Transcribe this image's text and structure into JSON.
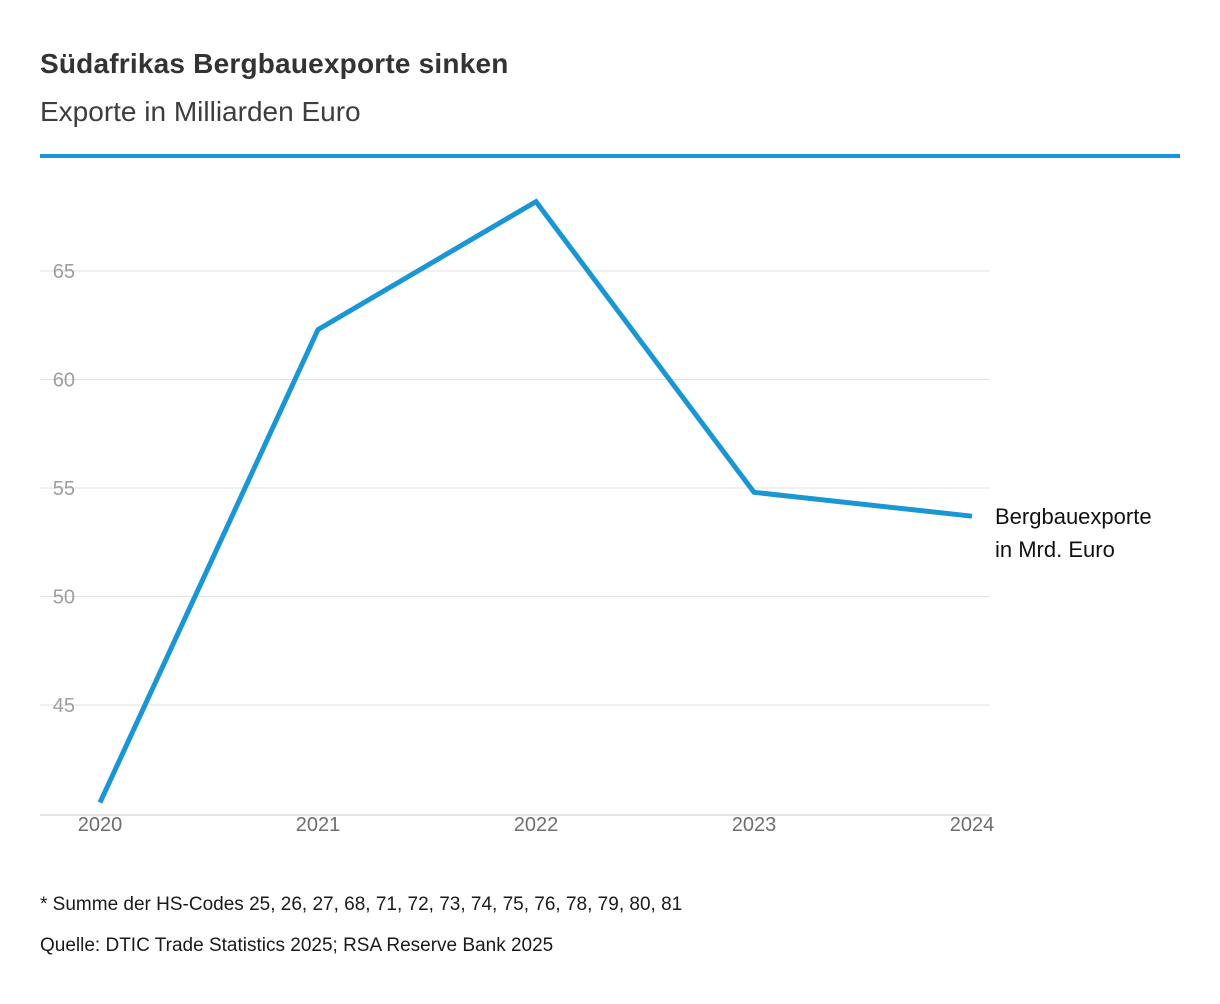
{
  "header": {
    "title": "Südafrikas Bergbauexporte sinken",
    "subtitle": "Exporte in Milliarden Euro"
  },
  "chart_data": {
    "type": "line",
    "title": "Südafrikas Bergbauexporte sinken",
    "subtitle": "Exporte in Milliarden Euro",
    "x": [
      "2020",
      "2021",
      "2022",
      "2023",
      "2024"
    ],
    "series": [
      {
        "name": "Bergbauexporte in Mrd. Euro",
        "values": [
          40.5,
          62.3,
          68.2,
          54.8,
          53.7
        ]
      }
    ],
    "yticks": [
      45,
      50,
      55,
      60,
      65
    ],
    "ylim": [
      39.9,
      69.5
    ],
    "grid": true,
    "legend_position": "right-of-line-end",
    "line_color": "#1a96d5",
    "grid_color": "#e2e2e2",
    "axis_color": "#c9c9c9",
    "annotation": {
      "line1": "Bergbauexporte",
      "line2": "in Mrd. Euro"
    }
  },
  "accent_color": "#1a96d5",
  "footnotes": {
    "note": "* Summe der HS-Codes 25, 26, 27, 68, 71, 72, 73, 74, 75, 76, 78, 79, 80, 81",
    "source": "Quelle: DTIC Trade Statistics 2025; RSA Reserve Bank 2025"
  }
}
